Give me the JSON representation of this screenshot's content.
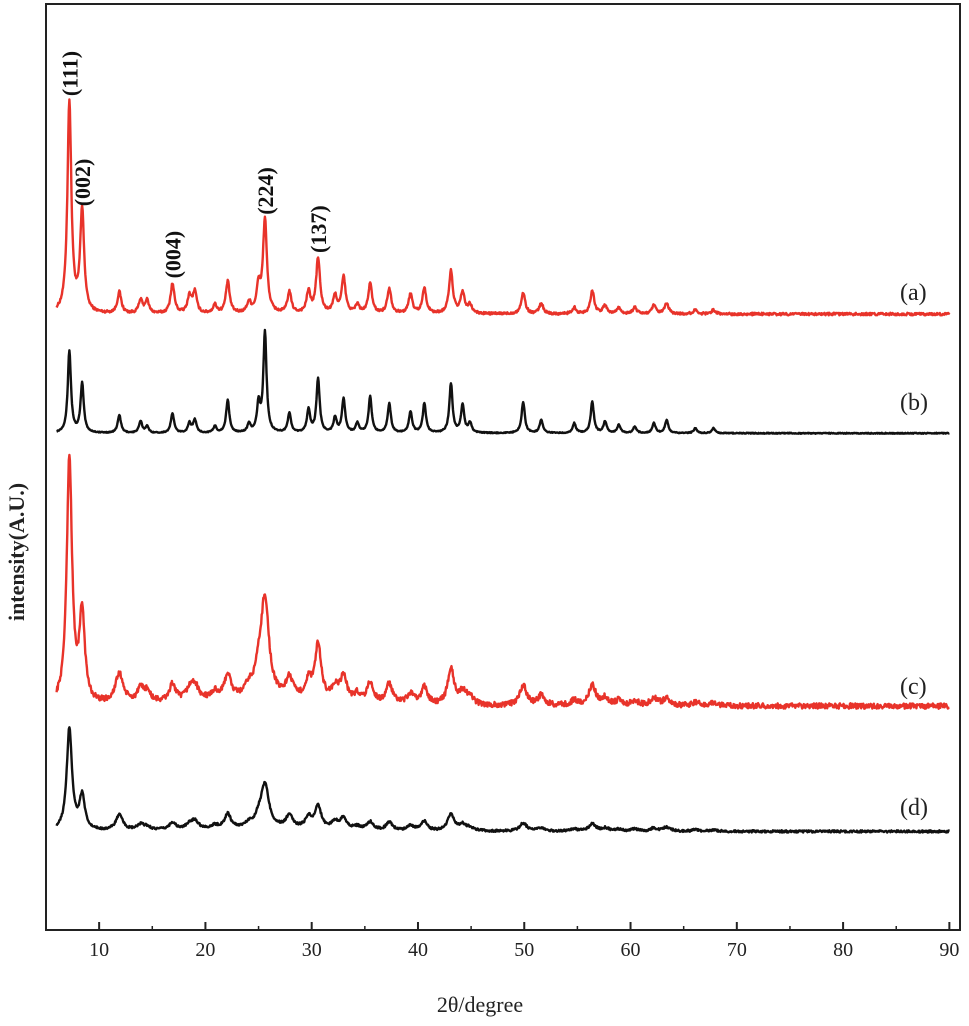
{
  "chart_data": {
    "type": "line",
    "xlabel": "2θ/degree",
    "ylabel": "intensity(A.U.)",
    "xlim": [
      5,
      91
    ],
    "xticks": [
      10,
      20,
      30,
      40,
      50,
      60,
      70,
      80,
      90
    ],
    "yticks": "none",
    "grid": false,
    "legend": "none",
    "peaks_x": [
      7.2,
      8.4,
      11.9,
      13.9,
      14.5,
      16.9,
      18.5,
      19.0,
      20.9,
      22.1,
      24.1,
      25.0,
      25.6,
      27.9,
      29.7,
      30.6,
      32.2,
      33.0,
      34.3,
      35.5,
      37.3,
      39.3,
      40.6,
      43.1,
      44.2,
      44.9,
      49.9,
      51.6,
      54.7,
      56.4,
      57.6,
      58.9,
      60.4,
      62.2,
      63.4,
      66.1,
      67.8
    ],
    "series": [
      {
        "name": "(a)",
        "color": "#e8332a",
        "baseline": 0.9,
        "peak_intensity": [
          100,
          48,
          10,
          6,
          6,
          14,
          8,
          10,
          4,
          15,
          5,
          12,
          44,
          10,
          10,
          26,
          8,
          17,
          4,
          14,
          12,
          9,
          12,
          20,
          10,
          4,
          10,
          5,
          3,
          11,
          4,
          3,
          3,
          4,
          5,
          2,
          2
        ],
        "peak_width": [
          0.22,
          0.22,
          0.22,
          0.22,
          0.22,
          0.22,
          0.22,
          0.22,
          0.22,
          0.22,
          0.22,
          0.22,
          0.22,
          0.22,
          0.22,
          0.22,
          0.22,
          0.22,
          0.22,
          0.22,
          0.22,
          0.22,
          0.22,
          0.22,
          0.22,
          0.22,
          0.22,
          0.22,
          0.22,
          0.22,
          0.22,
          0.22,
          0.22,
          0.22,
          0.22,
          0.22,
          0.22
        ]
      },
      {
        "name": "(b)",
        "color": "#111111",
        "baseline": 0.9,
        "peak_intensity": [
          100,
          60,
          22,
          14,
          8,
          24,
          12,
          16,
          8,
          40,
          10,
          34,
          122,
          24,
          28,
          66,
          18,
          42,
          12,
          44,
          36,
          26,
          36,
          60,
          34,
          12,
          38,
          16,
          12,
          38,
          14,
          10,
          8,
          12,
          16,
          6,
          6
        ],
        "peak_width": [
          0.18,
          0.18,
          0.18,
          0.18,
          0.18,
          0.18,
          0.18,
          0.18,
          0.18,
          0.18,
          0.18,
          0.18,
          0.18,
          0.18,
          0.18,
          0.18,
          0.18,
          0.18,
          0.18,
          0.18,
          0.18,
          0.18,
          0.18,
          0.18,
          0.18,
          0.18,
          0.18,
          0.18,
          0.18,
          0.18,
          0.18,
          0.18,
          0.18,
          0.18,
          0.18,
          0.18,
          0.18
        ]
      },
      {
        "name": "(c)",
        "color": "#e8332a",
        "baseline": 2.0,
        "peak_intensity": [
          100,
          36,
          12,
          5,
          4,
          7,
          4,
          6,
          3,
          10,
          4,
          8,
          40,
          8,
          7,
          22,
          5,
          10,
          3,
          8,
          8,
          4,
          7,
          15,
          5,
          3,
          8,
          4,
          2,
          8,
          3,
          2,
          2,
          3,
          3,
          1.5,
          1.5
        ],
        "peak_width": [
          0.3,
          0.3,
          0.45,
          0.4,
          0.4,
          0.35,
          0.4,
          0.4,
          0.4,
          0.35,
          0.45,
          0.4,
          0.45,
          0.4,
          0.35,
          0.35,
          0.4,
          0.35,
          0.4,
          0.35,
          0.35,
          0.4,
          0.35,
          0.35,
          0.4,
          0.4,
          0.4,
          0.4,
          0.4,
          0.4,
          0.4,
          0.4,
          0.4,
          0.4,
          0.4,
          0.4,
          0.4
        ]
      },
      {
        "name": "(d)",
        "color": "#111111",
        "baseline": 2.5,
        "peak_intensity": [
          100,
          33,
          15,
          5,
          3,
          7,
          4,
          8,
          3,
          14,
          4,
          8,
          42,
          12,
          11,
          22,
          7,
          11,
          3,
          8,
          8,
          5,
          9,
          17,
          6,
          3,
          8,
          3,
          2,
          7,
          3,
          2,
          2,
          3,
          4,
          1.5,
          1.5
        ],
        "peak_width": [
          0.3,
          0.3,
          0.4,
          0.4,
          0.4,
          0.35,
          0.4,
          0.4,
          0.4,
          0.35,
          0.4,
          0.4,
          0.45,
          0.4,
          0.35,
          0.35,
          0.4,
          0.35,
          0.4,
          0.35,
          0.35,
          0.4,
          0.35,
          0.35,
          0.4,
          0.4,
          0.4,
          0.4,
          0.4,
          0.4,
          0.4,
          0.4,
          0.4,
          0.4,
          0.4,
          0.4,
          0.4
        ]
      }
    ],
    "annotations": [
      {
        "text": "(111)",
        "x": 7.2,
        "series": "(a)"
      },
      {
        "text": "(002)",
        "x": 8.4,
        "series": "(a)"
      },
      {
        "text": "(004)",
        "x": 16.9,
        "series": "(a)"
      },
      {
        "text": "(224)",
        "x": 25.6,
        "series": "(a)"
      },
      {
        "text": "(137)",
        "x": 30.6,
        "series": "(a)"
      }
    ]
  }
}
